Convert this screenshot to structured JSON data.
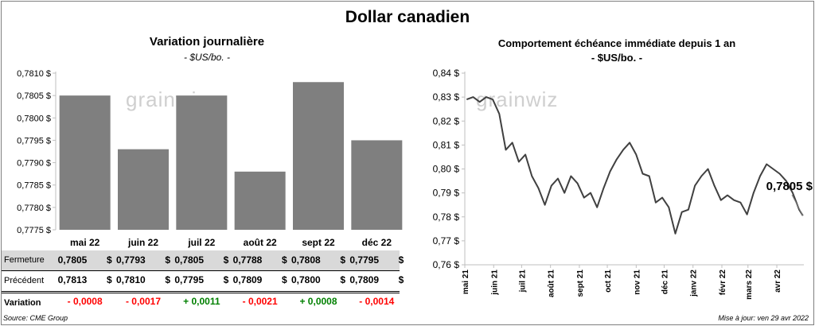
{
  "title": "Dollar canadien",
  "left_chart": {
    "title": "Variation  journalière",
    "subtitle": "- $US/bo. -"
  },
  "right_chart": {
    "title": "Comportement échéance immédiate depuis 1 an",
    "subtitle": "- $US/bo. -",
    "end_label": "0,7805 $"
  },
  "watermark": "grainwiz",
  "table": {
    "rows": [
      {
        "label": "Fermeture",
        "values": [
          "0,7805",
          "0,7793",
          "0,7805",
          "0,7788",
          "0,7808",
          "0,7795"
        ],
        "unit": "$"
      },
      {
        "label": "Précédent",
        "values": [
          "0,7813",
          "0,7810",
          "0,7795",
          "0,7809",
          "0,7800",
          "0,7809"
        ],
        "unit": "$"
      },
      {
        "label": "Variation",
        "values": [
          "- 0,0008",
          "- 0,0017",
          "+ 0,0011",
          "- 0,0021",
          "+ 0,0008",
          "- 0,0014"
        ]
      }
    ]
  },
  "colors": {
    "bar": "#7f7f7f",
    "line": "#404040",
    "neg": "#ff0000",
    "pos": "#008000",
    "header_bg": "#d9d9d9"
  },
  "footer": {
    "source": "Source: CME Group",
    "updated": "Mise à jour: ven 29 avr 2022"
  },
  "chart_data": [
    {
      "type": "bar",
      "categories": [
        "mai 22",
        "juin 22",
        "juil 22",
        "août 22",
        "sept 22",
        "déc 22"
      ],
      "values": [
        0.7805,
        0.7793,
        0.7805,
        0.7788,
        0.7808,
        0.7795
      ],
      "ylim": [
        0.7775,
        0.781
      ],
      "yticks": [
        "0,7775 $",
        "0,7780 $",
        "0,7785 $",
        "0,7790 $",
        "0,7795 $",
        "0,7800 $",
        "0,7805 $",
        "0,7810 $"
      ],
      "title": "Variation  journalière",
      "grid": false
    },
    {
      "type": "line",
      "title": "Comportement échéance immédiate depuis 1 an",
      "ylim": [
        0.76,
        0.84
      ],
      "yticks": [
        "0,76 $",
        "0,77 $",
        "0,78 $",
        "0,79 $",
        "0,80 $",
        "0,81 $",
        "0,82 $",
        "0,83 $",
        "0,84 $"
      ],
      "xticks": [
        "mai 21",
        "juin 21",
        "juil 21",
        "août 21",
        "sept 21",
        "oct 21",
        "nov 21",
        "déc 21",
        "janv 22",
        "févr 22",
        "mars 22",
        "avr 22"
      ],
      "x": [
        "2021-05-03",
        "2021-05-10",
        "2021-05-17",
        "2021-05-24",
        "2021-05-31",
        "2021-06-07",
        "2021-06-14",
        "2021-06-21",
        "2021-06-28",
        "2021-07-05",
        "2021-07-12",
        "2021-07-19",
        "2021-07-26",
        "2021-08-02",
        "2021-08-09",
        "2021-08-16",
        "2021-08-23",
        "2021-08-30",
        "2021-09-06",
        "2021-09-13",
        "2021-09-20",
        "2021-09-27",
        "2021-10-04",
        "2021-10-11",
        "2021-10-18",
        "2021-10-25",
        "2021-11-01",
        "2021-11-08",
        "2021-11-15",
        "2021-11-22",
        "2021-11-29",
        "2021-12-06",
        "2021-12-13",
        "2021-12-20",
        "2021-12-27",
        "2022-01-03",
        "2022-01-10",
        "2022-01-17",
        "2022-01-24",
        "2022-01-31",
        "2022-02-07",
        "2022-02-14",
        "2022-02-21",
        "2022-02-28",
        "2022-03-07",
        "2022-03-14",
        "2022-03-21",
        "2022-03-28",
        "2022-04-04",
        "2022-04-11",
        "2022-04-18",
        "2022-04-25",
        "2022-04-29"
      ],
      "values": [
        0.829,
        0.83,
        0.828,
        0.83,
        0.829,
        0.823,
        0.808,
        0.811,
        0.803,
        0.806,
        0.797,
        0.792,
        0.785,
        0.793,
        0.796,
        0.79,
        0.797,
        0.794,
        0.788,
        0.79,
        0.784,
        0.792,
        0.799,
        0.804,
        0.808,
        0.811,
        0.806,
        0.798,
        0.797,
        0.786,
        0.788,
        0.784,
        0.773,
        0.782,
        0.783,
        0.793,
        0.797,
        0.8,
        0.793,
        0.787,
        0.789,
        0.787,
        0.786,
        0.781,
        0.79,
        0.797,
        0.802,
        0.8,
        0.798,
        0.795,
        0.79,
        0.783,
        0.7805
      ]
    }
  ]
}
